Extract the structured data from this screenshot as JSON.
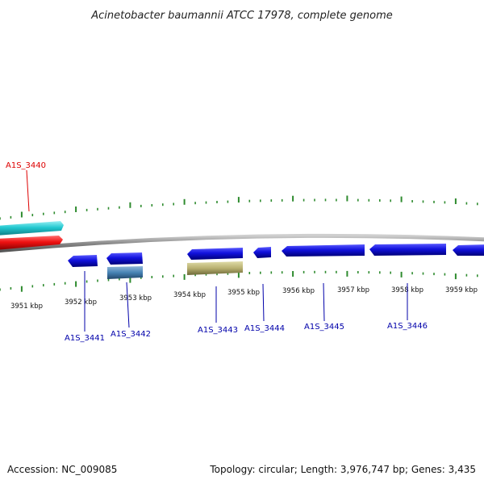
{
  "title": "Acinetobacter baumannii ATCC 17978, complete genome",
  "footer": {
    "accession": "Accession: NC_009085",
    "summary": "Topology: circular; Length: 3,976,747 bp; Genes: 3,435"
  },
  "scale": {
    "unit": "kbp",
    "ticks": [
      {
        "label": "3951 kbp"
      },
      {
        "label": "3952 kbp"
      },
      {
        "label": "3953 kbp"
      },
      {
        "label": "3954 kbp"
      },
      {
        "label": "3955 kbp"
      },
      {
        "label": "3956 kbp"
      },
      {
        "label": "3957 kbp"
      },
      {
        "label": "3958 kbp"
      },
      {
        "label": "3959 kbp"
      }
    ]
  },
  "genes": [
    {
      "label": "A1S_3440",
      "strand": "forward",
      "label_color": "#dd0000"
    },
    {
      "label": "A1S_3441",
      "strand": "reverse",
      "label_color": "#0000aa"
    },
    {
      "label": "A1S_3442",
      "strand": "reverse",
      "label_color": "#0000aa"
    },
    {
      "label": "A1S_3443",
      "strand": "reverse",
      "label_color": "#0000aa"
    },
    {
      "label": "A1S_3444",
      "strand": "reverse",
      "label_color": "#0000aa"
    },
    {
      "label": "A1S_3445",
      "strand": "reverse",
      "label_color": "#0000aa"
    },
    {
      "label": "A1S_3446",
      "strand": "reverse",
      "label_color": "#0000aa"
    }
  ],
  "colors": {
    "backbone": "#8a8a8a",
    "tick": "#2e8b2e",
    "forward_gene": "#ee1111",
    "reverse_gene": "#1111dd",
    "forward_feature": "#22c8d0",
    "reverse_feature_steel": "#4682b4",
    "reverse_feature_olive": "#b8b070"
  }
}
